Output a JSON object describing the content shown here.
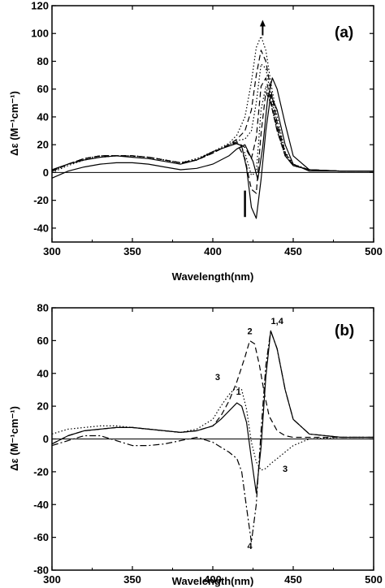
{
  "chart_data": [
    {
      "panel_label": "(a)",
      "type": "line",
      "xlabel": "Wavelength(nm)",
      "ylabel": "Δε (M⁻¹cm⁻¹)",
      "xlim": [
        300,
        500
      ],
      "ylim": [
        -50,
        120
      ],
      "x_ticks": [
        "300",
        "350",
        "400",
        "450",
        "500"
      ],
      "y_ticks": [
        "-40",
        "-20",
        "0",
        "20",
        "40",
        "60",
        "80",
        "100",
        "120"
      ],
      "zero_line": true,
      "annotations": [
        {
          "type": "arrow-up",
          "x": 431,
          "y": 108
        },
        {
          "type": "arrow-up",
          "x": 420,
          "y": -32,
          "y_end": -13
        }
      ],
      "series": [
        {
          "style": "solid",
          "x": [
            300,
            310,
            320,
            330,
            340,
            350,
            360,
            370,
            380,
            390,
            400,
            410,
            415,
            420,
            425,
            428,
            431,
            434,
            437,
            440,
            445,
            450,
            460,
            480,
            500
          ],
          "y": [
            -4,
            1,
            4,
            6,
            7,
            7,
            6,
            4,
            2,
            3,
            6,
            12,
            17,
            20,
            8,
            -5,
            18,
            52,
            68,
            60,
            35,
            12,
            2,
            1,
            1
          ]
        },
        {
          "style": "solid",
          "x": [
            300,
            310,
            320,
            330,
            340,
            350,
            360,
            370,
            380,
            390,
            400,
            410,
            415,
            418,
            421,
            424,
            427,
            430,
            433,
            436,
            440,
            445,
            450,
            460,
            480,
            500
          ],
          "y": [
            2,
            6,
            9,
            11,
            12,
            11,
            10,
            8,
            6,
            9,
            15,
            19,
            21,
            19,
            3,
            -25,
            -33,
            -5,
            30,
            56,
            45,
            20,
            6,
            1,
            1,
            1
          ]
        },
        {
          "style": "dotted",
          "x": [
            300,
            310,
            320,
            330,
            340,
            350,
            360,
            370,
            380,
            390,
            400,
            410,
            415,
            420,
            424,
            427,
            430,
            433,
            436,
            440,
            445,
            450,
            460,
            480,
            500
          ],
          "y": [
            0,
            5,
            9,
            11,
            12,
            12,
            11,
            9,
            7,
            10,
            15,
            21,
            27,
            40,
            65,
            90,
            98,
            88,
            65,
            40,
            15,
            6,
            2,
            1,
            1
          ]
        },
        {
          "style": "dashed",
          "x": [
            300,
            310,
            320,
            330,
            340,
            350,
            360,
            370,
            380,
            390,
            400,
            410,
            415,
            420,
            424,
            427,
            430,
            433,
            436,
            440,
            445,
            450,
            460,
            480,
            500
          ],
          "y": [
            1,
            6,
            10,
            12,
            12,
            12,
            11,
            9,
            7,
            9,
            14,
            20,
            24,
            30,
            45,
            70,
            88,
            80,
            60,
            36,
            14,
            5,
            2,
            1,
            1
          ]
        },
        {
          "style": "dotted",
          "x": [
            300,
            310,
            320,
            330,
            340,
            350,
            360,
            370,
            380,
            390,
            400,
            410,
            415,
            420,
            424,
            427,
            430,
            433,
            436,
            440,
            445,
            450,
            460,
            480,
            500
          ],
          "y": [
            1,
            6,
            10,
            12,
            12,
            12,
            11,
            9,
            7,
            9,
            14,
            20,
            23,
            24,
            30,
            50,
            78,
            75,
            56,
            34,
            13,
            5,
            2,
            1,
            1
          ]
        },
        {
          "style": "dashed",
          "x": [
            300,
            310,
            320,
            330,
            340,
            350,
            360,
            370,
            380,
            390,
            400,
            410,
            415,
            420,
            424,
            427,
            430,
            433,
            436,
            440,
            445,
            450,
            460,
            480,
            500
          ],
          "y": [
            1,
            6,
            10,
            12,
            12,
            12,
            11,
            9,
            7,
            9,
            14,
            20,
            22,
            18,
            10,
            25,
            62,
            68,
            52,
            32,
            12,
            5,
            2,
            1,
            1
          ]
        },
        {
          "style": "dotted",
          "x": [
            300,
            310,
            320,
            330,
            340,
            350,
            360,
            370,
            380,
            390,
            400,
            410,
            415,
            420,
            424,
            427,
            430,
            433,
            436,
            440,
            445,
            450,
            460,
            480,
            500
          ],
          "y": [
            1,
            6,
            10,
            12,
            12,
            12,
            11,
            9,
            7,
            9,
            14,
            20,
            22,
            14,
            -2,
            0,
            45,
            62,
            50,
            30,
            12,
            5,
            2,
            1,
            1
          ]
        },
        {
          "style": "dashed",
          "x": [
            300,
            310,
            320,
            330,
            340,
            350,
            360,
            370,
            380,
            390,
            400,
            410,
            415,
            420,
            424,
            427,
            430,
            433,
            436,
            440,
            445,
            450,
            460,
            480,
            500
          ],
          "y": [
            1,
            6,
            10,
            12,
            12,
            12,
            11,
            9,
            7,
            9,
            14,
            20,
            21,
            10,
            -12,
            -15,
            28,
            58,
            50,
            30,
            12,
            5,
            2,
            1,
            1
          ]
        }
      ]
    },
    {
      "panel_label": "(b)",
      "type": "line",
      "xlabel": "Wavelength(nm)",
      "ylabel": "Δε (M⁻¹cm⁻¹)",
      "xlim": [
        300,
        500
      ],
      "ylim": [
        -80,
        80
      ],
      "x_ticks": [
        "300",
        "350",
        "400",
        "450",
        "500"
      ],
      "y_ticks": [
        "-80",
        "-60",
        "-40",
        "-20",
        "0",
        "20",
        "40",
        "60",
        "80"
      ],
      "zero_line": true,
      "series": [
        {
          "name": "1",
          "style": "solid",
          "x": [
            300,
            310,
            320,
            330,
            340,
            350,
            360,
            370,
            380,
            390,
            400,
            405,
            410,
            415,
            418,
            421,
            424,
            427,
            430,
            433,
            436,
            440,
            445,
            450,
            460,
            480,
            500
          ],
          "y": [
            -3,
            2,
            5,
            6,
            7,
            7,
            6,
            5,
            4,
            5,
            8,
            12,
            17,
            22,
            20,
            10,
            -12,
            -33,
            -5,
            38,
            66,
            55,
            30,
            12,
            3,
            1,
            1
          ]
        },
        {
          "name": "2",
          "style": "dashed",
          "x": [
            300,
            310,
            320,
            330,
            340,
            350,
            360,
            370,
            380,
            390,
            400,
            405,
            410,
            415,
            420,
            423,
            426,
            429,
            432,
            435,
            440,
            445,
            450,
            460,
            480,
            500
          ],
          "y": [
            -3,
            2,
            5,
            6,
            7,
            7,
            6,
            5,
            4,
            5,
            8,
            14,
            23,
            35,
            50,
            60,
            58,
            45,
            28,
            14,
            5,
            2,
            1,
            1,
            1,
            1
          ]
        },
        {
          "name": "3",
          "style": "dotted",
          "x": [
            300,
            310,
            320,
            330,
            340,
            350,
            360,
            370,
            380,
            390,
            400,
            405,
            410,
            415,
            418,
            421,
            424,
            427,
            430,
            433,
            436,
            440,
            445,
            450,
            460,
            480,
            500
          ],
          "y": [
            3,
            6,
            7,
            8,
            8,
            7,
            6,
            5,
            4,
            6,
            12,
            20,
            27,
            32,
            30,
            18,
            -2,
            -14,
            -19,
            -18,
            -15,
            -12,
            -8,
            -4,
            0,
            1,
            1
          ]
        },
        {
          "name": "4",
          "style": "dashdot",
          "x": [
            300,
            310,
            320,
            330,
            340,
            350,
            360,
            370,
            380,
            390,
            400,
            405,
            410,
            415,
            418,
            421,
            424,
            427,
            430,
            433,
            436,
            440,
            445,
            450,
            460,
            480,
            500
          ],
          "y": [
            -4,
            -1,
            2,
            2,
            -1,
            -4,
            -4,
            -3,
            -1,
            1,
            -2,
            -5,
            -8,
            -12,
            -20,
            -42,
            -63,
            -40,
            5,
            45,
            66,
            55,
            30,
            12,
            3,
            1,
            1
          ]
        }
      ],
      "curve_labels": [
        {
          "text": "1",
          "x": 416,
          "y": 27
        },
        {
          "text": "1,4",
          "x": 440,
          "y": 70
        },
        {
          "text": "2",
          "x": 423,
          "y": 64
        },
        {
          "text": "3",
          "x": 403,
          "y": 36
        },
        {
          "text": "3",
          "x": 445,
          "y": -20
        },
        {
          "text": "4",
          "x": 423,
          "y": -67
        }
      ]
    }
  ]
}
